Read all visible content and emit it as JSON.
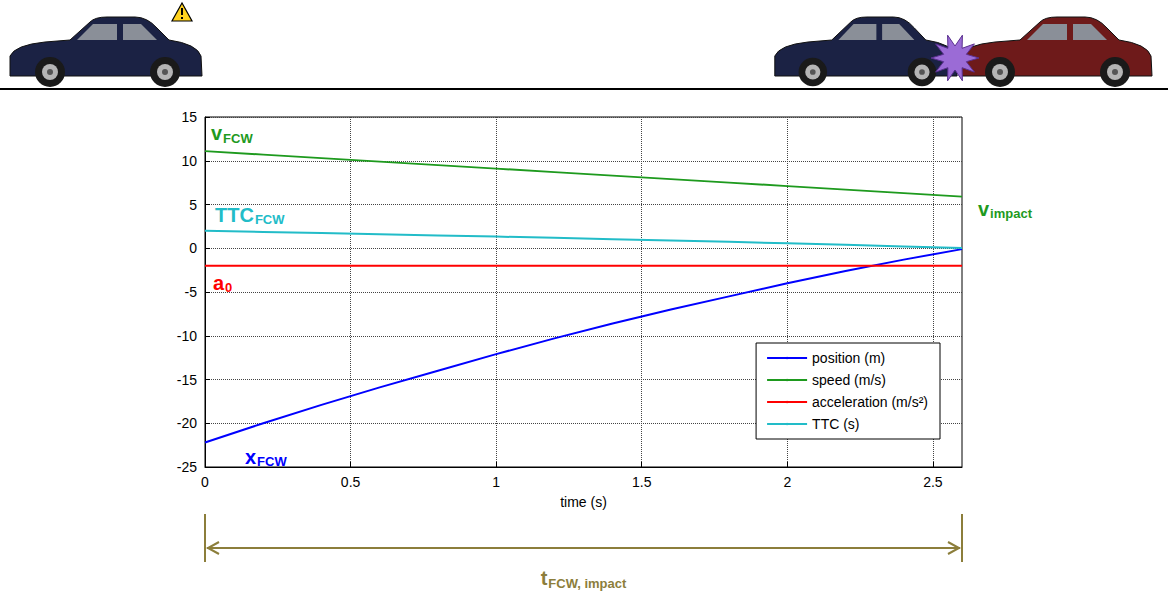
{
  "chart_data": {
    "type": "line",
    "x_label": "time (s)",
    "xlim": [
      0,
      2.6
    ],
    "xticks": [
      0,
      0.5,
      1,
      1.5,
      2,
      2.5
    ],
    "ylim": [
      -25,
      15
    ],
    "yticks": [
      -25,
      -20,
      -15,
      -10,
      -5,
      0,
      5,
      10,
      15
    ],
    "grid": true,
    "legend": "lower right",
    "x": [
      0,
      0.2,
      0.4,
      0.6,
      0.8,
      1.0,
      1.2,
      1.4,
      1.6,
      1.8,
      2.0,
      2.2,
      2.4,
      2.6
    ],
    "series": [
      {
        "name": "position (m)",
        "color": "#0000ff",
        "values": [
          -22.2,
          -20.0,
          -17.9,
          -15.9,
          -14.0,
          -12.1,
          -10.3,
          -8.6,
          -7.0,
          -5.5,
          -4.0,
          -2.6,
          -1.3,
          -0.1
        ],
        "start_label": {
          "text": "x",
          "subscript": "FCW"
        }
      },
      {
        "name": "speed (m/s)",
        "color": "#1e9a1e",
        "values": [
          11.1,
          10.7,
          10.3,
          9.9,
          9.5,
          9.1,
          8.7,
          8.3,
          7.9,
          7.5,
          7.1,
          6.7,
          6.3,
          5.9
        ],
        "start_label": {
          "text": "v",
          "subscript": "FCW"
        },
        "end_label": {
          "text": "v",
          "subscript": "impact"
        }
      },
      {
        "name": "acceleration (m/s²)",
        "color": "#ff0000",
        "values": [
          -2,
          -2,
          -2,
          -2,
          -2,
          -2,
          -2,
          -2,
          -2,
          -2,
          -2,
          -2,
          -2,
          -2
        ],
        "start_label": {
          "text": "a",
          "subscript": "0"
        }
      },
      {
        "name": "TTC (s)",
        "color": "#22bcc8",
        "values": [
          2.0,
          1.87,
          1.74,
          1.61,
          1.47,
          1.33,
          1.19,
          1.04,
          0.89,
          0.73,
          0.56,
          0.39,
          0.21,
          0.02
        ],
        "start_label": {
          "text": "TTC",
          "subscript": "FCW"
        }
      }
    ],
    "annotations": [
      {
        "text": "t",
        "subscript": "FCW, impact",
        "color": "#8c7e3b"
      }
    ]
  }
}
